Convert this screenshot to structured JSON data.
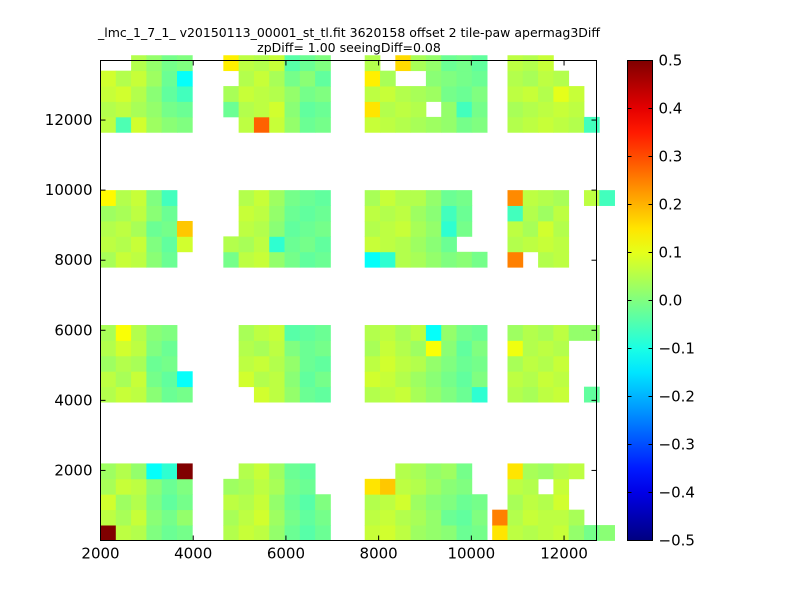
{
  "chart_data": {
    "type": "heatmap",
    "title_line1": "_lmc_1_7_1_ v20150113_00001_st_tl.fit 3620158 offset 2 tile-paw apermag3Diff",
    "title_line2": "zpDiff= 1.00 seeingDiff=0.08",
    "xlabel": "",
    "ylabel": "",
    "xlim": [
      2000,
      12700
    ],
    "ylim": [
      0,
      13700
    ],
    "x_ticks": [
      2000,
      4000,
      6000,
      8000,
      10000,
      12000
    ],
    "x_tick_labels": [
      "2000",
      "4000",
      "6000",
      "8000",
      "10000",
      "12000"
    ],
    "y_ticks": [
      2000,
      4000,
      6000,
      8000,
      10000,
      12000
    ],
    "y_tick_labels": [
      "2000",
      "4000",
      "6000",
      "8000",
      "10000",
      "12000"
    ],
    "colorbar": {
      "min": -0.5,
      "max": 0.5,
      "ticks": [
        -0.5,
        -0.4,
        -0.3,
        -0.2,
        -0.1,
        0.0,
        0.1,
        0.2,
        0.3,
        0.4,
        0.5
      ],
      "tick_labels": [
        "−0.5",
        "−0.4",
        "−0.3",
        "−0.2",
        "−0.1",
        "0.0",
        "0.1",
        "0.2",
        "0.3",
        "0.4",
        "0.5"
      ],
      "colormap": "jet"
    },
    "grid": false,
    "cell_width": 330,
    "cell_height": 440,
    "blocks": [
      {
        "x0": 2000,
        "y0": 0,
        "rows": [
          [
            0.5,
            0.06,
            0.05,
            0.0,
            -0.02,
            -0.01
          ],
          [
            0.06,
            0.04,
            0.07,
            0.01,
            -0.01,
            0.02
          ],
          [
            0.08,
            0.03,
            0.05,
            0.0,
            -0.03,
            -0.01
          ],
          [
            0.04,
            0.07,
            0.06,
            0.01,
            -0.02,
            0.0
          ],
          [
            0.03,
            0.05,
            0.02,
            -0.12,
            -0.08,
            0.5
          ]
        ]
      },
      {
        "x0": 4650,
        "y0": 0,
        "rows": [
          [
            0.05,
            0.07,
            0.06,
            0.02,
            -0.02,
            -0.04,
            -0.02
          ],
          [
            0.04,
            0.06,
            0.08,
            0.03,
            -0.01,
            -0.03,
            -0.01
          ],
          [
            0.06,
            0.05,
            0.07,
            0.02,
            -0.02,
            -0.04,
            0.0
          ],
          [
            0.03,
            0.04,
            0.06,
            0.04,
            -0.01,
            -0.02,
            null
          ],
          [
            null,
            0.05,
            0.07,
            0.03,
            -0.02,
            -0.03,
            null
          ]
        ]
      },
      {
        "x0": 7700,
        "y0": 0,
        "rows": [
          [
            0.07,
            0.08,
            0.06,
            0.03,
            0.02,
            0.01,
            -0.02,
            -0.01
          ],
          [
            0.06,
            0.07,
            0.05,
            0.04,
            0.02,
            -0.02,
            -0.03,
            0.0
          ],
          [
            0.05,
            0.06,
            0.08,
            0.03,
            0.01,
            0.0,
            -0.02,
            -0.01
          ],
          [
            0.15,
            0.18,
            0.06,
            0.05,
            0.03,
            0.01,
            0.0,
            null
          ],
          [
            null,
            null,
            0.05,
            0.04,
            0.02,
            0.03,
            -0.01,
            null
          ]
        ]
      },
      {
        "x0": 10450,
        "y0": 0,
        "rows": [
          [
            0.15,
            0.06,
            0.05,
            0.06,
            0.07,
            0.02,
            -0.01,
            0.01
          ],
          [
            0.25,
            0.05,
            0.07,
            0.06,
            0.06,
            0.04,
            null,
            null
          ],
          [
            null,
            0.04,
            0.06,
            0.05,
            0.08,
            null,
            null,
            null
          ],
          [
            null,
            0.06,
            0.05,
            null,
            0.07,
            null,
            null,
            null
          ],
          [
            null,
            0.15,
            0.04,
            0.03,
            0.05,
            0.06,
            null,
            null
          ]
        ]
      },
      {
        "x0": 2000,
        "y0": 3950,
        "rows": [
          [
            0.05,
            0.07,
            0.06,
            0.01,
            -0.02,
            -0.01
          ],
          [
            0.06,
            0.04,
            0.07,
            -0.01,
            -0.03,
            -0.12
          ],
          [
            0.03,
            0.05,
            0.04,
            -0.02,
            -0.01,
            null
          ],
          [
            0.05,
            0.08,
            0.06,
            0.0,
            -0.02,
            null
          ],
          [
            0.04,
            0.12,
            0.05,
            0.01,
            0.0,
            null
          ]
        ]
      },
      {
        "x0": 4980,
        "y0": 3950,
        "rows": [
          [
            null,
            0.08,
            0.06,
            0.02,
            -0.02,
            -0.03
          ],
          [
            0.08,
            0.05,
            0.06,
            0.01,
            -0.03,
            -0.01
          ],
          [
            0.06,
            0.07,
            0.05,
            0.02,
            -0.02,
            -0.03
          ],
          [
            0.05,
            0.04,
            0.06,
            0.0,
            -0.02,
            -0.01
          ],
          [
            0.04,
            0.06,
            0.07,
            -0.04,
            -0.03,
            -0.02
          ]
        ]
      },
      {
        "x0": 7700,
        "y0": 3950,
        "rows": [
          [
            0.05,
            0.06,
            0.07,
            0.04,
            0.02,
            0.0,
            -0.02,
            -0.08
          ],
          [
            0.08,
            0.07,
            0.05,
            0.03,
            0.01,
            -0.01,
            -0.03,
            0.0
          ],
          [
            0.06,
            0.08,
            0.06,
            0.05,
            0.02,
            0.0,
            -0.02,
            -0.01
          ],
          [
            0.04,
            0.07,
            0.05,
            0.03,
            0.12,
            0.01,
            -0.03,
            0.0
          ],
          [
            0.05,
            0.06,
            0.04,
            0.06,
            -0.12,
            0.02,
            -0.01,
            -0.02
          ]
        ]
      },
      {
        "x0": 10780,
        "y0": 3950,
        "rows": [
          [
            0.05,
            0.04,
            0.06,
            0.07,
            null,
            -0.03
          ],
          [
            0.06,
            0.05,
            0.07,
            0.06,
            null,
            null
          ],
          [
            0.04,
            0.06,
            0.05,
            0.07,
            null,
            null
          ],
          [
            0.11,
            0.05,
            0.06,
            0.05,
            null,
            null
          ],
          [
            0.03,
            0.05,
            0.04,
            0.06,
            0.02,
            0.02
          ]
        ]
      },
      {
        "x0": 2000,
        "y0": 7800,
        "rows": [
          [
            0.04,
            0.07,
            0.06,
            0.01,
            -0.02,
            null
          ],
          [
            0.06,
            0.05,
            0.07,
            0.0,
            -0.03,
            0.08
          ],
          [
            0.05,
            0.06,
            0.04,
            -0.02,
            -0.01,
            0.18
          ],
          [
            0.03,
            0.04,
            0.06,
            0.01,
            -0.02,
            null
          ],
          [
            0.13,
            0.05,
            0.07,
            0.0,
            -0.06,
            null
          ]
        ]
      },
      {
        "x0": 4650,
        "y0": 7800,
        "rows": [
          [
            -0.01,
            0.06,
            0.07,
            0.02,
            -0.01,
            -0.03,
            -0.02
          ],
          [
            0.05,
            0.04,
            0.06,
            -0.08,
            -0.02,
            -0.01,
            -0.03
          ],
          [
            null,
            0.06,
            0.05,
            0.01,
            -0.03,
            -0.02,
            -0.01
          ],
          [
            null,
            0.07,
            0.06,
            0.02,
            -0.02,
            -0.03,
            -0.02
          ],
          [
            null,
            0.05,
            0.07,
            0.03,
            -0.01,
            -0.02,
            -0.03
          ]
        ]
      },
      {
        "x0": 7700,
        "y0": 7800,
        "rows": [
          [
            -0.12,
            -0.08,
            0.05,
            0.04,
            0.02,
            0.0,
            0.01,
            -0.01
          ],
          [
            0.07,
            0.06,
            0.05,
            0.03,
            0.01,
            -0.02,
            null,
            null
          ],
          [
            0.05,
            0.06,
            0.07,
            0.04,
            0.02,
            -0.08,
            -0.01,
            null
          ],
          [
            0.06,
            0.05,
            0.06,
            0.03,
            0.01,
            -0.06,
            -0.02,
            null
          ],
          [
            0.04,
            0.07,
            0.05,
            0.05,
            0.02,
            -0.02,
            -0.01,
            null
          ]
        ]
      },
      {
        "x0": 10450,
        "y0": 7800,
        "rows": [
          [
            null,
            0.25,
            null,
            0.05,
            0.06,
            null,
            null,
            null
          ],
          [
            null,
            0.05,
            0.06,
            0.07,
            0.06,
            null,
            null,
            null
          ],
          [
            null,
            0.06,
            0.04,
            0.08,
            0.05,
            null,
            null,
            null
          ],
          [
            null,
            -0.06,
            0.05,
            0.03,
            0.06,
            null,
            null,
            null
          ],
          [
            null,
            0.24,
            0.06,
            0.05,
            0.04,
            null,
            0.06,
            -0.06
          ]
        ]
      },
      {
        "x0": 2000,
        "y0": 11650,
        "rows": [
          [
            0.06,
            -0.05,
            0.08,
            0.03,
            0.01,
            0.0
          ],
          [
            0.05,
            0.06,
            0.04,
            0.02,
            -0.01,
            -0.02
          ],
          [
            0.07,
            0.08,
            0.05,
            0.01,
            -0.03,
            -0.06
          ],
          [
            0.08,
            0.05,
            0.07,
            0.03,
            -0.02,
            -0.12
          ],
          [
            null,
            null,
            0.05,
            0.02,
            -0.01,
            0.0
          ]
        ]
      },
      {
        "x0": 4650,
        "y0": 11650,
        "rows": [
          [
            null,
            0.06,
            0.28,
            0.07,
            0.02,
            -0.02,
            -0.01
          ],
          [
            -0.02,
            0.05,
            0.06,
            0.08,
            0.01,
            -0.03,
            -0.02
          ],
          [
            0.04,
            0.07,
            0.06,
            0.05,
            0.02,
            -0.01,
            0.0
          ],
          [
            null,
            0.05,
            0.07,
            0.04,
            -0.01,
            0.01,
            -0.03
          ],
          [
            0.14,
            0.06,
            0.05,
            0.07,
            -0.04,
            -0.02,
            0.0
          ]
        ]
      },
      {
        "x0": 7700,
        "y0": 11650,
        "rows": [
          [
            0.07,
            0.06,
            0.05,
            0.04,
            0.03,
            0.02,
            -0.01,
            0.0
          ],
          [
            0.15,
            0.05,
            0.06,
            0.05,
            null,
            0.02,
            -0.06,
            -0.01
          ],
          [
            0.06,
            0.07,
            0.05,
            0.04,
            0.03,
            -0.01,
            -0.02,
            0.0
          ],
          [
            0.14,
            0.04,
            null,
            null,
            0.01,
            0.0,
            -0.01,
            -0.02
          ],
          [
            0.05,
            null,
            0.16,
            0.04,
            0.02,
            -0.02,
            -0.01,
            -0.03
          ]
        ]
      },
      {
        "x0": 10780,
        "y0": 11650,
        "rows": [
          [
            0.05,
            0.06,
            0.07,
            0.06,
            0.05,
            -0.06
          ],
          [
            0.04,
            0.05,
            0.06,
            0.07,
            0.06,
            null
          ],
          [
            0.06,
            0.07,
            0.05,
            0.1,
            0.07,
            null
          ],
          [
            0.05,
            0.04,
            0.06,
            0.05,
            null,
            null
          ],
          [
            0.06,
            0.05,
            0.07,
            null,
            null,
            null
          ]
        ]
      }
    ]
  }
}
